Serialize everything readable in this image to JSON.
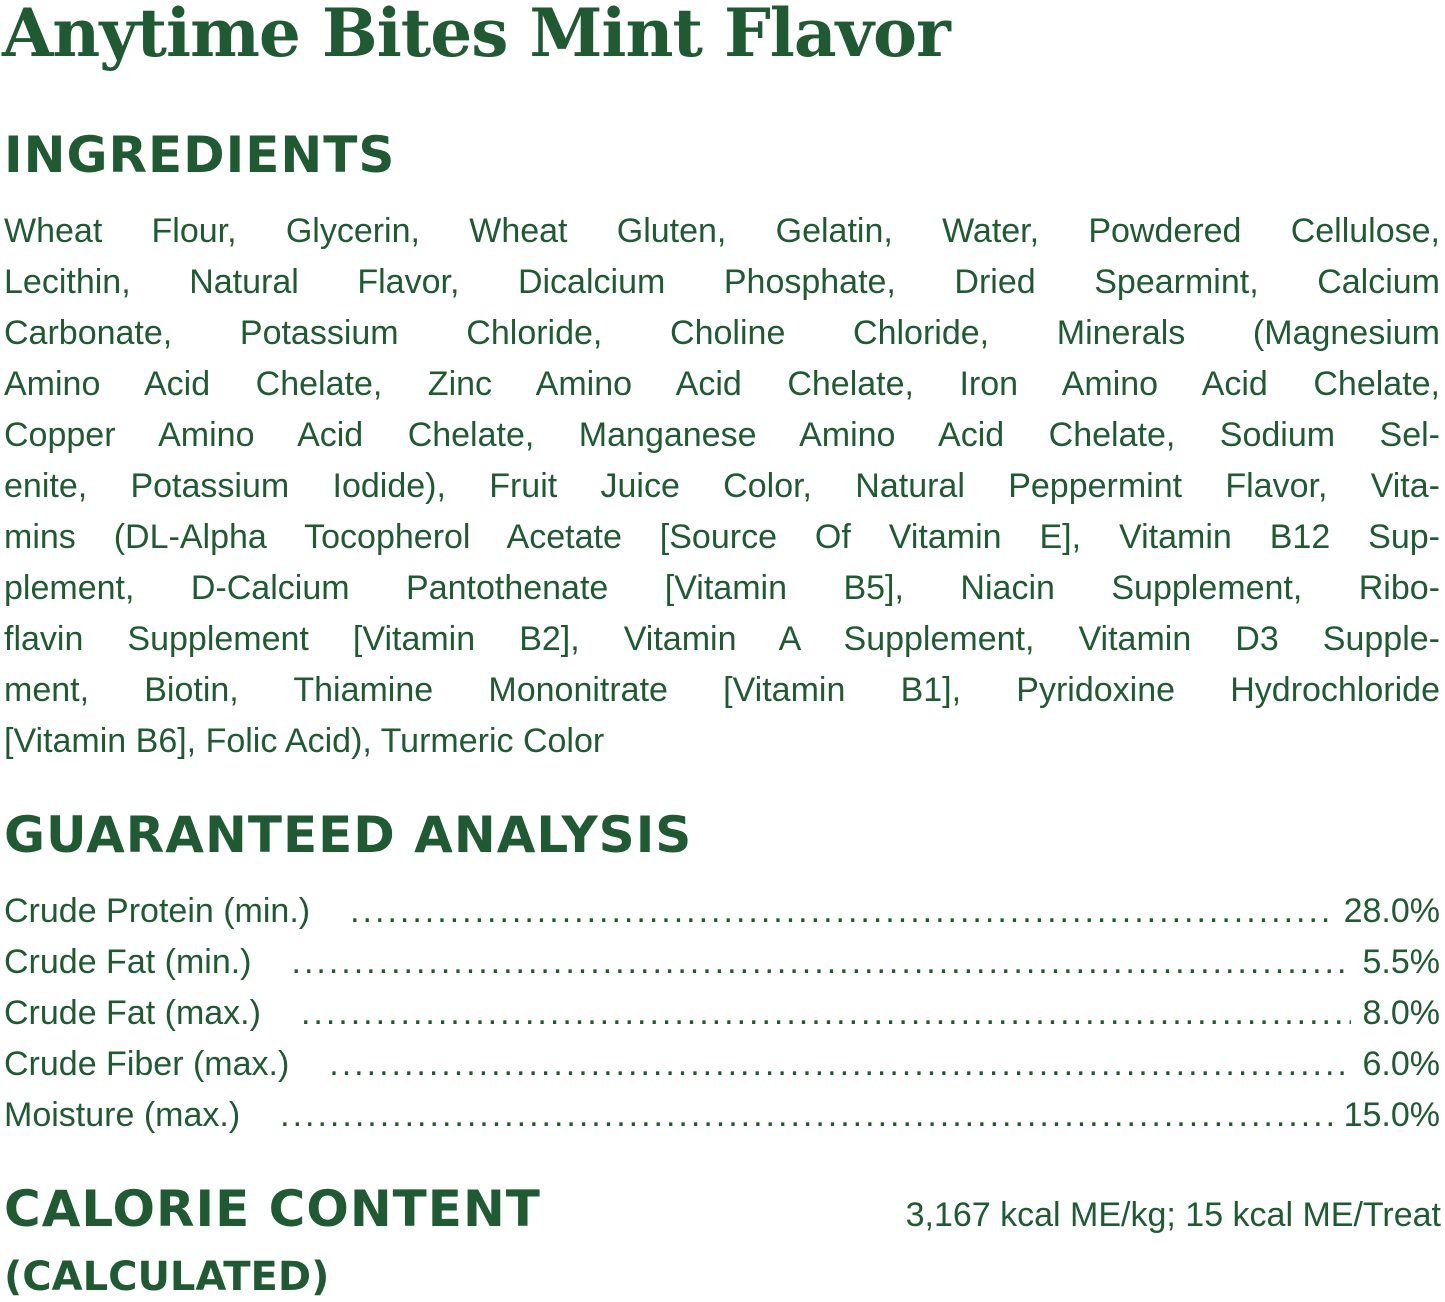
{
  "title": "Anytime Bites Mint Flavor",
  "colors": {
    "text": "#1f5a33",
    "background": "#ffffff"
  },
  "ingredients": {
    "heading": "INGREDIENTS",
    "lines": [
      "Wheat Flour, Glycerin, Wheat Gluten, Gelatin, Water, Powdered Cellulose,",
      "Lecithin, Natural Flavor, Dicalcium Phosphate, Dried Spearmint, Calcium",
      "Carbonate, Potassium Chloride, Choline Chloride, Minerals (Magnesium",
      "Amino Acid Chelate, Zinc Amino Acid Chelate, Iron Amino Acid Chelate,",
      "Copper Amino Acid Chelate, Manganese Amino Acid Chelate, Sodium Sel-",
      "enite, Potassium Iodide), Fruit Juice Color, Natural Peppermint Flavor, Vita-",
      "mins (DL-Alpha Tocopherol Acetate [Source Of Vitamin E], Vitamin B12 Sup-",
      "plement, D-Calcium Pantothenate [Vitamin B5], Niacin Supplement, Ribo-",
      "flavin Supplement [Vitamin B2], Vitamin A Supplement, Vitamin D3 Supple-",
      "ment, Biotin, Thiamine Mononitrate [Vitamin B1], Pyridoxine Hydrochloride",
      "[Vitamin B6], Folic Acid), Turmeric Color"
    ]
  },
  "analysis": {
    "heading": "GUARANTEED ANALYSIS",
    "rows": [
      {
        "label": "Crude Protein (min.)",
        "value": "28.0%"
      },
      {
        "label": "Crude Fat (min.)",
        "value": "5.5%"
      },
      {
        "label": "Crude Fat (max.)",
        "value": "8.0%"
      },
      {
        "label": "Crude Fiber (max.)",
        "value": "6.0%"
      },
      {
        "label": "Moisture (max.)",
        "value": "15.0%"
      }
    ]
  },
  "calorie": {
    "heading": "CALORIE CONTENT",
    "subheading": "(CALCULATED)",
    "value": "3,167 kcal ME/kg; 15 kcal ME/Treat"
  }
}
